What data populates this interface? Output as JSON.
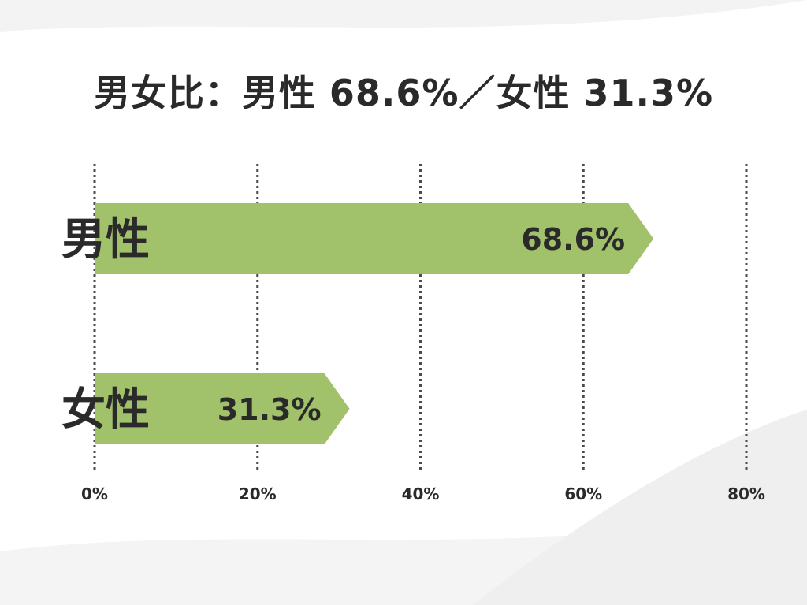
{
  "chart_data": {
    "type": "bar",
    "orientation": "horizontal",
    "title": "男女比：男性 68.6%／女性 31.3%",
    "categories": [
      "男性",
      "女性"
    ],
    "values": [
      68.6,
      31.3
    ],
    "data_labels": [
      "68.6%",
      "31.3%"
    ],
    "x_ticks": [
      0,
      20,
      40,
      60,
      80
    ],
    "x_tick_labels": [
      "0%",
      "20%",
      "40%",
      "60%",
      "80%"
    ],
    "xlim": [
      0,
      80
    ],
    "grid": true,
    "grid_style": "dotted",
    "legend": "none",
    "bar_color": "#a1c16a",
    "text_color": "#2a2a2a"
  }
}
